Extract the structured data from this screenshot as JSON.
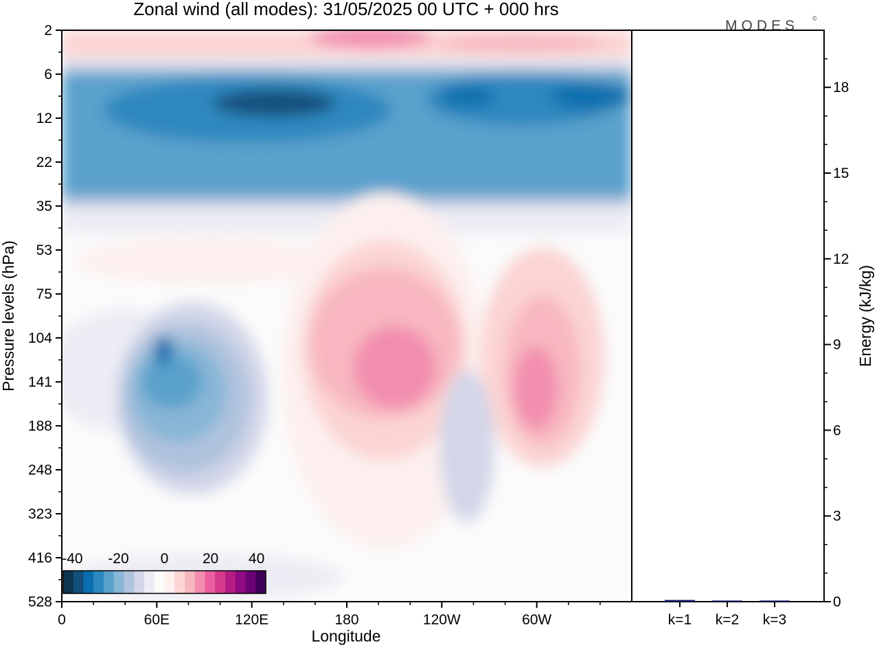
{
  "header": {
    "title": "Zonal wind (all modes):  31/05/2025  00 UTC  + 000 hrs",
    "logo": "MODES",
    "logo_mark": "©"
  },
  "chart_data": [
    {
      "type": "heatmap",
      "title": "Zonal wind (all modes):  31/05/2025  00 UTC  + 000 hrs",
      "xlabel": "Longitude",
      "ylabel": "Pressure levels (hPa)",
      "x_ticks": [
        "0",
        "60E",
        "120E",
        "180",
        "120W",
        "60W"
      ],
      "y_ticks": [
        "2",
        "6",
        "12",
        "22",
        "35",
        "53",
        "75",
        "104",
        "141",
        "188",
        "248",
        "323",
        "416",
        "528"
      ],
      "y_scale": "log, pressure decreasing upward",
      "colorbar": {
        "ticks": [
          "-40",
          "-20",
          "0",
          "20",
          "40"
        ],
        "range": [
          -44,
          44
        ],
        "step": 4,
        "colors": [
          "#0d3450",
          "#134f7c",
          "#0b6fae",
          "#2d88bf",
          "#5aa1cc",
          "#88b6d6",
          "#b0c3dd",
          "#d2d6e8",
          "#ececf4",
          "#fbfbfb",
          "#fdf0ef",
          "#fbd4d3",
          "#f8b7c0",
          "#f28daf",
          "#ea5f9e",
          "#d63a8e",
          "#b51d84",
          "#8f0b7f",
          "#6a0373",
          "#3f0059"
        ]
      },
      "features": [
        {
          "description": "easterly jet band",
          "lon_range": [
            0,
            360
          ],
          "level_range": [
            6,
            35
          ],
          "min_value": -36
        },
        {
          "description": "easterly core",
          "lon_center": 60,
          "level_center": 141,
          "min_value": -32
        },
        {
          "description": "westerly core",
          "lon_center": 200,
          "level_center": 141,
          "max_value": 16
        },
        {
          "description": "westerly core",
          "lon_center": 290,
          "level_center": 141,
          "max_value": 20
        },
        {
          "description": "westerly band",
          "lon_range": [
            0,
            360
          ],
          "level_range": [
            2,
            4
          ],
          "max_value": 16
        }
      ]
    },
    {
      "type": "bar",
      "ylabel": "Energy (kJ/kg)",
      "categories": [
        "k=1",
        "k=2",
        "k=3"
      ],
      "values": [
        0.06,
        0.04,
        0.04
      ],
      "ylim": [
        0,
        20
      ],
      "y_ticks": [
        "0",
        "3",
        "6",
        "9",
        "12",
        "15",
        "18"
      ]
    }
  ]
}
